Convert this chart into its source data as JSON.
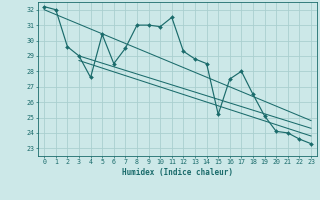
{
  "x": [
    0,
    1,
    2,
    3,
    4,
    5,
    6,
    7,
    8,
    9,
    10,
    11,
    12,
    13,
    14,
    15,
    16,
    17,
    18,
    19,
    20,
    21,
    22,
    23
  ],
  "y_main": [
    32.2,
    32.0,
    29.6,
    29.0,
    27.6,
    30.4,
    28.5,
    29.5,
    31.0,
    31.0,
    30.9,
    31.5,
    29.3,
    28.8,
    28.5,
    25.2,
    27.5,
    28.0,
    26.5,
    25.1,
    24.1,
    24.0,
    23.6,
    23.3
  ],
  "line1_x": [
    0,
    23
  ],
  "line1_y": [
    32.0,
    24.8
  ],
  "line2_x": [
    3,
    23
  ],
  "line2_y": [
    29.0,
    24.3
  ],
  "line3_x": [
    3,
    23
  ],
  "line3_y": [
    28.7,
    23.8
  ],
  "bg_color": "#cce8e8",
  "line_color": "#1a6b6b",
  "grid_color": "#aacfcf",
  "xlabel": "Humidex (Indice chaleur)",
  "ylim": [
    22.5,
    32.5
  ],
  "xlim": [
    -0.5,
    23.5
  ],
  "yticks": [
    23,
    24,
    25,
    26,
    27,
    28,
    29,
    30,
    31,
    32
  ],
  "xticks": [
    0,
    1,
    2,
    3,
    4,
    5,
    6,
    7,
    8,
    9,
    10,
    11,
    12,
    13,
    14,
    15,
    16,
    17,
    18,
    19,
    20,
    21,
    22,
    23
  ]
}
